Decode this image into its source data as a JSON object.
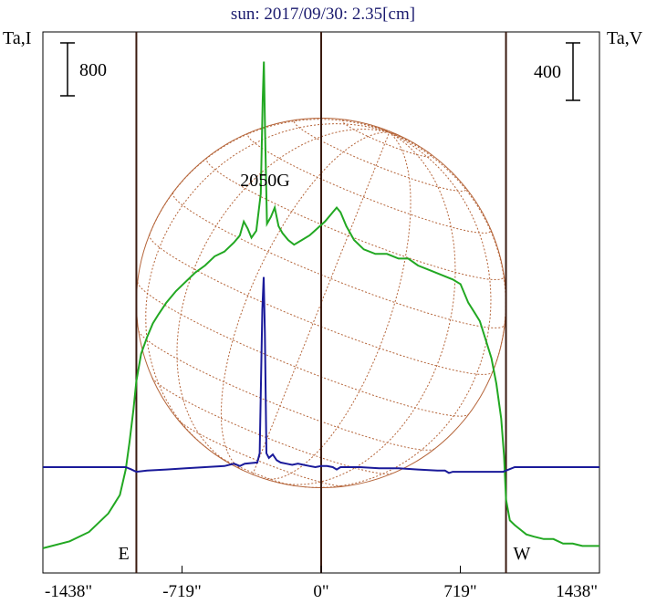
{
  "chart_data": {
    "type": "line",
    "title": "sun: 2017/09/30: 2.35[cm]",
    "left_axis_label": "Ta,I",
    "right_axis_label": "Ta,V",
    "left_scale_bar": "800",
    "right_scale_bar": "400",
    "x_ticks": [
      {
        "value": -1438,
        "label": "-1438\""
      },
      {
        "value": -719,
        "label": "-719\""
      },
      {
        "value": 0,
        "label": "0\""
      },
      {
        "value": 719,
        "label": "719\""
      },
      {
        "value": 1438,
        "label": "1438\""
      }
    ],
    "xlim": [
      -1438,
      1438
    ],
    "limb_markers": [
      {
        "x": -955,
        "label": "E"
      },
      {
        "x": 955,
        "label": "W"
      }
    ],
    "solar_radius_arcsec": 955,
    "annotation": {
      "text": "2050G",
      "x": -290
    },
    "grid": false,
    "colors": {
      "intensity": "#22a822",
      "polarization": "#1a1a9a",
      "disk": "#b5653a",
      "lines": "#3a1a10"
    },
    "series": [
      {
        "role": "intensity",
        "points": [
          [
            -1438,
            0.02
          ],
          [
            -1300,
            0.05
          ],
          [
            -1200,
            0.09
          ],
          [
            -1100,
            0.17
          ],
          [
            -1040,
            0.25
          ],
          [
            -1010,
            0.36
          ],
          [
            -990,
            0.48
          ],
          [
            -970,
            0.62
          ],
          [
            -955,
            0.74
          ],
          [
            -930,
            0.86
          ],
          [
            -900,
            0.93
          ],
          [
            -870,
            0.99
          ],
          [
            -840,
            1.03
          ],
          [
            -800,
            1.08
          ],
          [
            -750,
            1.13
          ],
          [
            -700,
            1.17
          ],
          [
            -650,
            1.21
          ],
          [
            -600,
            1.24
          ],
          [
            -550,
            1.28
          ],
          [
            -500,
            1.3
          ],
          [
            -450,
            1.34
          ],
          [
            -420,
            1.37
          ],
          [
            -400,
            1.43
          ],
          [
            -380,
            1.4
          ],
          [
            -360,
            1.36
          ],
          [
            -335,
            1.39
          ],
          [
            -312,
            1.55
          ],
          [
            -302,
            1.95
          ],
          [
            -296,
            2.12
          ],
          [
            -290,
            1.82
          ],
          [
            -280,
            1.42
          ],
          [
            -260,
            1.45
          ],
          [
            -240,
            1.49
          ],
          [
            -220,
            1.41
          ],
          [
            -200,
            1.38
          ],
          [
            -170,
            1.35
          ],
          [
            -140,
            1.33
          ],
          [
            -100,
            1.35
          ],
          [
            -60,
            1.37
          ],
          [
            -20,
            1.4
          ],
          [
            20,
            1.43
          ],
          [
            60,
            1.47
          ],
          [
            80,
            1.49
          ],
          [
            100,
            1.47
          ],
          [
            130,
            1.41
          ],
          [
            170,
            1.35
          ],
          [
            220,
            1.31
          ],
          [
            280,
            1.29
          ],
          [
            340,
            1.29
          ],
          [
            400,
            1.27
          ],
          [
            450,
            1.27
          ],
          [
            500,
            1.24
          ],
          [
            560,
            1.22
          ],
          [
            620,
            1.2
          ],
          [
            680,
            1.18
          ],
          [
            720,
            1.16
          ],
          [
            760,
            1.08
          ],
          [
            790,
            1.04
          ],
          [
            820,
            1.0
          ],
          [
            850,
            0.92
          ],
          [
            880,
            0.84
          ],
          [
            905,
            0.73
          ],
          [
            930,
            0.58
          ],
          [
            945,
            0.42
          ],
          [
            955,
            0.23
          ],
          [
            975,
            0.14
          ],
          [
            1000,
            0.12
          ],
          [
            1030,
            0.1
          ],
          [
            1060,
            0.08
          ],
          [
            1100,
            0.07
          ],
          [
            1150,
            0.06
          ],
          [
            1200,
            0.06
          ],
          [
            1250,
            0.04
          ],
          [
            1300,
            0.04
          ],
          [
            1350,
            0.03
          ],
          [
            1400,
            0.03
          ],
          [
            1438,
            0.03
          ]
        ]
      },
      {
        "role": "polarization",
        "points": [
          [
            -1438,
            0.37
          ],
          [
            -1010,
            0.37
          ],
          [
            -980,
            0.36
          ],
          [
            -955,
            0.35
          ],
          [
            -900,
            0.355
          ],
          [
            -800,
            0.36
          ],
          [
            -700,
            0.365
          ],
          [
            -600,
            0.37
          ],
          [
            -500,
            0.375
          ],
          [
            -450,
            0.385
          ],
          [
            -420,
            0.375
          ],
          [
            -395,
            0.385
          ],
          [
            -330,
            0.39
          ],
          [
            -318,
            0.43
          ],
          [
            -304,
            1.05
          ],
          [
            -297,
            1.19
          ],
          [
            -291,
            0.95
          ],
          [
            -283,
            0.43
          ],
          [
            -270,
            0.41
          ],
          [
            -250,
            0.425
          ],
          [
            -230,
            0.4
          ],
          [
            -210,
            0.39
          ],
          [
            -180,
            0.385
          ],
          [
            -150,
            0.38
          ],
          [
            -120,
            0.385
          ],
          [
            -90,
            0.38
          ],
          [
            -60,
            0.375
          ],
          [
            -30,
            0.37
          ],
          [
            0,
            0.375
          ],
          [
            30,
            0.375
          ],
          [
            60,
            0.37
          ],
          [
            80,
            0.36
          ],
          [
            100,
            0.37
          ],
          [
            140,
            0.37
          ],
          [
            200,
            0.37
          ],
          [
            300,
            0.365
          ],
          [
            400,
            0.365
          ],
          [
            500,
            0.36
          ],
          [
            600,
            0.355
          ],
          [
            640,
            0.355
          ],
          [
            660,
            0.345
          ],
          [
            680,
            0.35
          ],
          [
            750,
            0.35
          ],
          [
            880,
            0.35
          ],
          [
            940,
            0.35
          ],
          [
            970,
            0.36
          ],
          [
            1000,
            0.37
          ],
          [
            1438,
            0.37
          ]
        ]
      }
    ]
  }
}
